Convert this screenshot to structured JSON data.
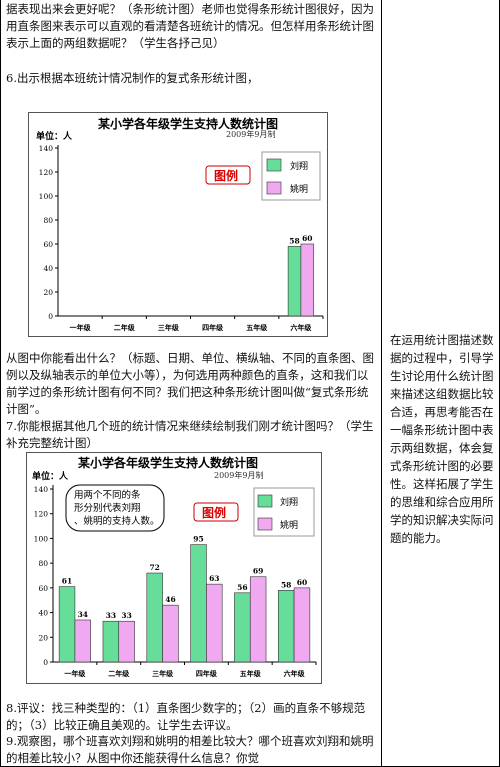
{
  "left_text": {
    "p1": "据表现出来会更好呢？（条形统计图）老师也觉得条形统计图很好，因为用直条图来表示可以直观的看清楚各班统计的情况。但怎样用条形统计图表示上面的两组数据呢？（学生各抒己见）",
    "p6": "6.出示根据本班统计情况制作的复式条形统计图，",
    "p_after1": "从图中你能看出什么？（标题、日期、单位、横纵轴、不同的直条图、图例以及纵轴表示的单位大小等），为何选用两种颜色的直条，这和我们以前学过的条形统计图有何不同？我们把这种条形统计图叫做“复式条形统计图”。",
    "p7": "7.你能根据其他几个班的统计情况来继续绘制我们刚才统计图吗？（学生补充完整统计图）",
    "p8": "8.评议：找三种类型的：（1）直条图少数字的；（2）画的直条不够规范的；（3）比较正确且美观的。让学生去评议。",
    "p9": "9.观察图，哪个班喜欢刘翔和姚明的相差比较大？哪个班喜欢刘翔和姚明的相差比较小？从图中你还能获得什么信息？你觉"
  },
  "right_text": "在运用统计图描述数据的过程中，引导学生讨论用什么统计图来描述这组数据比较合适，再思考能否在一幅条形统计图中表示两组数据，体会复式条形统计图的必要性。这样拓展了学生的思维和综合应用所学的知识解决实际问题的能力。",
  "chart_data": [
    {
      "type": "bar",
      "title": "某小学各年级学生支持人数统计图",
      "unit": "单位：人",
      "date": "2009年9月制",
      "legend_title": "图例",
      "categories": [
        "一年级",
        "二年级",
        "三年级",
        "四年级",
        "五年级",
        "六年级"
      ],
      "series": [
        {
          "name": "刘翔",
          "color": "#66dd99",
          "values": [
            null,
            null,
            null,
            null,
            null,
            58
          ]
        },
        {
          "name": "姚明",
          "color": "#f0a8f0",
          "values": [
            null,
            null,
            null,
            null,
            null,
            60
          ]
        }
      ],
      "ylim": [
        0,
        140
      ],
      "yticks": [
        0,
        20,
        40,
        60,
        80,
        100,
        120,
        140
      ],
      "grid": false
    },
    {
      "type": "bar",
      "title": "某小学各年级学生支持人数统计图",
      "unit": "单位：人",
      "date": "2009年9月制",
      "legend_title": "图例",
      "callout": "用两个不同的条形分别代表刘翔、姚明的支持人数。",
      "categories": [
        "一年级",
        "二年级",
        "三年级",
        "四年级",
        "五年级",
        "六年级"
      ],
      "series": [
        {
          "name": "刘翔",
          "color": "#66dd99",
          "values": [
            61,
            33,
            72,
            95,
            56,
            58
          ]
        },
        {
          "name": "姚明",
          "color": "#f0a8f0",
          "values": [
            34,
            33,
            46,
            63,
            69,
            60
          ]
        }
      ],
      "ylim": [
        0,
        140
      ],
      "yticks": [
        0,
        20,
        40,
        60,
        80,
        100,
        120,
        140
      ],
      "grid": false
    }
  ]
}
